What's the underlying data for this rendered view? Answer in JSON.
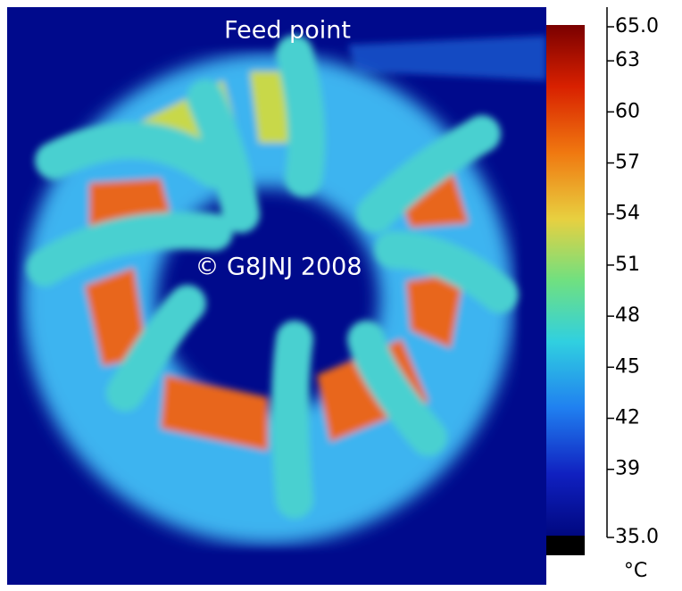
{
  "image": {
    "labels": [
      "Feed point",
      "© G8JNJ 2008"
    ]
  },
  "colorbar": {
    "range": [
      35,
      65
    ],
    "ticks": [
      {
        "value": 65,
        "label": "65.0"
      },
      63,
      60,
      57,
      54,
      51,
      48,
      45,
      42,
      39,
      {
        "value": 35,
        "label": "35.0"
      }
    ],
    "unit": "°C"
  }
}
